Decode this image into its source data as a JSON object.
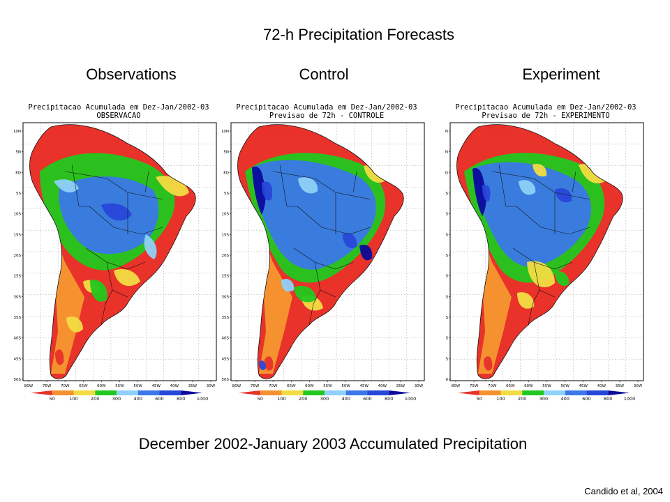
{
  "slide": {
    "title": "72-h Precipitation Forecasts",
    "caption": "December 2002-January 2003 Accumulated Precipitation",
    "credit": "Candido et al, 2004"
  },
  "colors": {
    "lt50": "#e8322a",
    "50_100": "#f5922f",
    "100_200": "#f2dc42",
    "200_300": "#22c81f",
    "300_400": "#8fd1f8",
    "400_600": "#3b78e8",
    "600_800": "#2747d8",
    "gt1000": "#0b0b9a",
    "ocean": "#ffffff",
    "border": "#111111"
  },
  "lat_labels": [
    "10N",
    "5N",
    "EQ",
    "5S",
    "10S",
    "15S",
    "20S",
    "25S",
    "30S",
    "35S",
    "40S",
    "45S",
    "50S"
  ],
  "lon_labels": [
    "80W",
    "75W",
    "70W",
    "65W",
    "60W",
    "55W",
    "50W",
    "45W",
    "40W",
    "35W",
    "30W"
  ],
  "legend_labels": [
    "50",
    "100",
    "200",
    "300",
    "400",
    "600",
    "800",
    "1000"
  ],
  "panels": [
    {
      "heading": "Observations",
      "map_title_1": "Precipitacao Acumulada em Dez-Jan/2002-03",
      "map_title_2": "OBSERVACAO",
      "lat_labels": [
        "10N",
        "5N",
        "EQ",
        "5S",
        "10S",
        "15S",
        "20S",
        "25S",
        "30S",
        "35S",
        "40S",
        "45S",
        "50S"
      ]
    },
    {
      "heading": "Control",
      "map_title_1": "Precipitacao Acumulada em Dez-Jan/2002-03",
      "map_title_2": "Previsao de 72h - CONTROLE",
      "lat_labels": [
        "10N",
        "5N",
        "EQ",
        "5S",
        "10S",
        "15S",
        "20S",
        "25S",
        "30S",
        "35S",
        "40S",
        "45S",
        "50S"
      ]
    },
    {
      "heading": "Experiment",
      "map_title_1": "Precipitacao Acumulada em Dez-Jan/2002-03",
      "map_title_2": "Previsao de 72h - EXPERIMENTO",
      "lat_labels": [
        "N",
        "N",
        "Q",
        "S",
        "S",
        "S",
        "S",
        "S",
        "S",
        "S",
        "S",
        "S",
        "0"
      ]
    }
  ]
}
